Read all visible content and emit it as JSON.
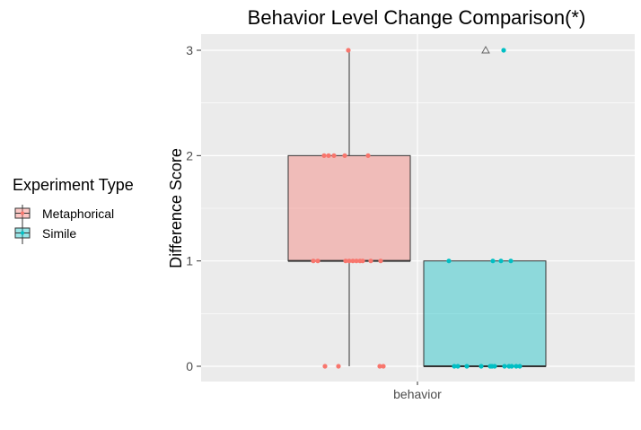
{
  "chart_data": {
    "type": "boxplot",
    "title": "Behavior Level Change Comparison(*)",
    "xlabel": "",
    "ylabel": "Difference Score",
    "categories": [
      "behavior"
    ],
    "ylim": [
      -0.15,
      3.15
    ],
    "yticks": [
      0,
      1,
      2,
      3
    ],
    "grid": true,
    "legend": {
      "title": "Experiment Type",
      "position": "left",
      "entries": [
        "Metaphorical",
        "Simile"
      ]
    },
    "series": [
      {
        "name": "Metaphorical",
        "color": "#F8766D",
        "fill": "#F8766D",
        "box": {
          "min": 0,
          "q1": 1,
          "median": 1,
          "q3": 2,
          "max": 3
        },
        "points": [
          0,
          0,
          0,
          0,
          1,
          1,
          1,
          1,
          1,
          1,
          1,
          1,
          1,
          1,
          2,
          2,
          2,
          2,
          2,
          3
        ]
      },
      {
        "name": "Simile",
        "color": "#00BFC4",
        "fill": "#00BFC4",
        "box": {
          "min": 0,
          "q1": 0,
          "median": 0,
          "q3": 1,
          "max": 1
        },
        "outliers": [
          3
        ],
        "points": [
          0,
          0,
          0,
          0,
          0,
          0,
          0,
          0,
          0,
          0,
          0,
          0,
          1,
          1,
          1,
          1,
          3
        ]
      }
    ]
  }
}
